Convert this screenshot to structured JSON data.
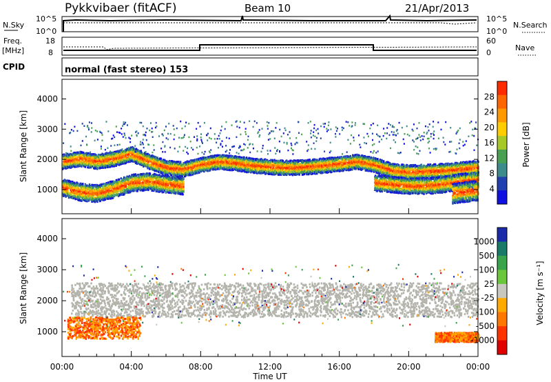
{
  "header": {
    "radar": "Pykkvibaer (fitACF)",
    "beam": "Beam 10",
    "date": "21/Apr/2013"
  },
  "aux_panels": {
    "nsky": {
      "label": "N.Sky",
      "ticks": [
        "10^5",
        "10^0"
      ]
    },
    "nsearch": {
      "label": "N.Search",
      "ticks": [
        "10^5",
        "10^0"
      ]
    },
    "freq": {
      "label_top": "Freq.",
      "label_unit": "[MHz]",
      "ticks": [
        "18",
        "8"
      ]
    },
    "nave": {
      "label": "Nave",
      "ticks": [
        "60",
        "0"
      ]
    },
    "cpid": {
      "label": "CPID",
      "text": "normal (fast stereo) 153"
    }
  },
  "colors": {
    "power_scale": [
      "#1010e0",
      "#2040b0",
      "#3c8c8c",
      "#48a050",
      "#a8c828",
      "#ffcc00",
      "#ff9900",
      "#ff6600",
      "#ff2a00"
    ],
    "velocity_scale": [
      "#1a2aa8",
      "#1a7a6a",
      "#3aa44a",
      "#6ac63a",
      "#c8c8c0",
      "#ffaa00",
      "#ff7700",
      "#ff3300",
      "#e00000"
    ],
    "ground_scatter": "#b4b4ac"
  },
  "chart_data": [
    {
      "type": "heatmap",
      "panel": "power",
      "ylabel": "Slant Range [km]",
      "yticks": [
        "1000",
        "2000",
        "3000",
        "4000"
      ],
      "ylim": [
        200,
        4650
      ],
      "xlim_hours": [
        0,
        24
      ],
      "colorbar": {
        "label": "Power [dB]",
        "ticks": [
          "4",
          "8",
          "12",
          "16",
          "20",
          "24",
          "28"
        ]
      },
      "bands": [
        {
          "name": "",
          "points": [
            [
              0,
              1950
            ],
            [
              1,
              2050
            ],
            [
              2,
              1950
            ],
            [
              3,
              2050
            ],
            [
              4,
              2200
            ],
            [
              5,
              1950
            ],
            [
              6,
              1750
            ],
            [
              7,
              1700
            ],
            [
              8,
              1850
            ],
            [
              9,
              1950
            ],
            [
              10,
              1900
            ],
            [
              11,
              1820
            ],
            [
              12,
              1780
            ],
            [
              13,
              1750
            ],
            [
              14,
              1770
            ],
            [
              15,
              1820
            ],
            [
              16,
              1880
            ],
            [
              17,
              1950
            ],
            [
              18,
              1850
            ],
            [
              19,
              1650
            ],
            [
              20,
              1600
            ],
            [
              21,
              1620
            ],
            [
              22,
              1650
            ],
            [
              23,
              1700
            ],
            [
              24,
              1750
            ]
          ],
          "width_km": 220
        },
        {
          "name": "",
          "points": [
            [
              0,
              1100
            ],
            [
              1,
              950
            ],
            [
              2,
              900
            ],
            [
              3,
              1050
            ],
            [
              4,
              1250
            ],
            [
              5,
              1300
            ],
            [
              6,
              1200
            ],
            [
              7,
              1150
            ]
          ],
          "width_km": 260
        },
        {
          "name": "",
          "points": [
            [
              18,
              1250
            ],
            [
              19,
              1200
            ],
            [
              20,
              1150
            ],
            [
              21,
              1150
            ],
            [
              22,
              1200
            ],
            [
              23,
              1300
            ],
            [
              24,
              1350
            ]
          ],
          "width_km": 240
        },
        {
          "name": "",
          "points": [
            [
              22.5,
              900
            ],
            [
              23.2,
              950
            ],
            [
              24,
              1000
            ]
          ],
          "width_km": 300
        }
      ]
    },
    {
      "type": "heatmap",
      "panel": "velocity",
      "xlabel": "Time UT",
      "ylabel": "Slant Range [km]",
      "yticks": [
        "1000",
        "2000",
        "3000",
        "4000"
      ],
      "xticks": [
        "00:00",
        "04:00",
        "08:00",
        "12:00",
        "16:00",
        "20:00",
        "00:00"
      ],
      "ylim": [
        200,
        4650
      ],
      "xlim_hours": [
        0,
        24
      ],
      "colorbar": {
        "label": "Velocity [m s⁻¹]",
        "ticks": [
          "1000",
          "500",
          "100",
          "25",
          "-25",
          "-100",
          "-500",
          "-1000"
        ]
      },
      "regions": [
        {
          "kind": "ground-scatter",
          "t": [
            0.5,
            24
          ],
          "range_km": [
            1500,
            2600
          ]
        },
        {
          "kind": "negative",
          "t": [
            0.3,
            4.5
          ],
          "range_km": [
            800,
            1500
          ]
        },
        {
          "kind": "negative",
          "t": [
            21.5,
            24
          ],
          "range_km": [
            700,
            1000
          ]
        }
      ]
    }
  ]
}
